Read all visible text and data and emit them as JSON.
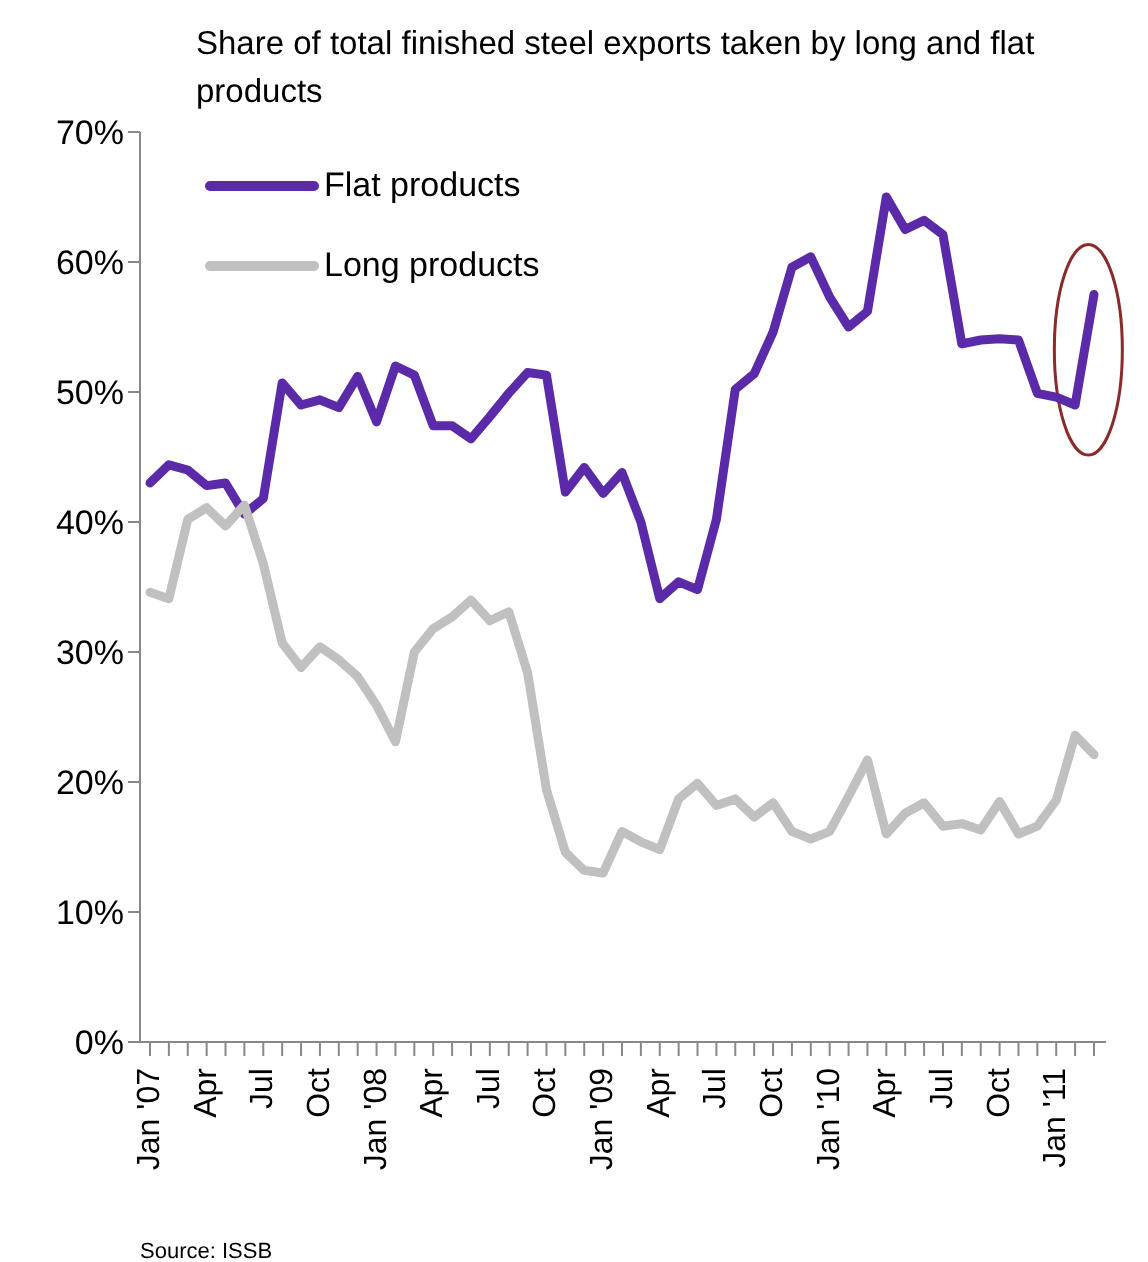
{
  "chart_data": {
    "type": "line",
    "title": "Share of total finished steel exports taken by long and flat products",
    "categories": [
      "Jan '07",
      null,
      null,
      "Apr",
      null,
      null,
      "Jul",
      null,
      null,
      "Oct",
      null,
      null,
      "Jan '08",
      null,
      null,
      "Apr",
      null,
      null,
      "Jul",
      null,
      null,
      "Oct",
      null,
      null,
      "Jan '09",
      null,
      null,
      "Apr",
      null,
      null,
      "Jul",
      null,
      null,
      "Oct",
      null,
      null,
      "Jan '10",
      null,
      null,
      "Apr",
      null,
      null,
      "Jul",
      null,
      null,
      "Oct",
      null,
      null,
      "Jan '11",
      null,
      null
    ],
    "series": [
      {
        "name": "Flat products",
        "color": "#5b2aa8",
        "values": [
          43.0,
          44.4,
          44.0,
          42.8,
          43.0,
          40.6,
          41.8,
          50.7,
          49.0,
          49.4,
          48.8,
          51.2,
          47.7,
          52.0,
          51.3,
          47.4,
          47.4,
          46.4,
          48.1,
          49.9,
          51.5,
          51.3,
          42.3,
          44.2,
          42.2,
          43.8,
          40.0,
          34.1,
          35.4,
          34.8,
          40.2,
          50.2,
          51.4,
          54.6,
          59.6,
          60.4,
          57.3,
          55.0,
          56.2,
          65.0,
          62.5,
          63.2,
          62.1,
          53.7,
          54.0,
          54.1,
          54.0,
          49.9,
          49.6,
          49.0,
          57.5
        ]
      },
      {
        "name": "Long products",
        "color": "#c0c0c0",
        "values": [
          34.6,
          34.1,
          40.2,
          41.1,
          39.7,
          41.3,
          36.8,
          30.7,
          28.8,
          30.4,
          29.4,
          28.1,
          25.9,
          23.1,
          30.0,
          31.8,
          32.7,
          34.0,
          32.4,
          33.1,
          28.4,
          19.4,
          14.6,
          13.2,
          13.0,
          16.2,
          15.4,
          14.8,
          18.7,
          19.9,
          18.2,
          18.7,
          17.3,
          18.4,
          16.2,
          15.6,
          16.2,
          18.9,
          21.7,
          16.0,
          17.6,
          18.4,
          16.6,
          16.8,
          16.3,
          18.5,
          16.0,
          16.6,
          18.6,
          23.6,
          22.1
        ]
      }
    ],
    "ylim": [
      0,
      70
    ],
    "yticks": [
      {
        "value": 0,
        "label": "0%"
      },
      {
        "value": 10,
        "label": "10%"
      },
      {
        "value": 20,
        "label": "20%"
      },
      {
        "value": 30,
        "label": "30%"
      },
      {
        "value": 40,
        "label": "40%"
      },
      {
        "value": 50,
        "label": "50%"
      },
      {
        "value": 60,
        "label": "60%"
      },
      {
        "value": 70,
        "label": "70%"
      }
    ],
    "grid": false,
    "legend": "top left",
    "marker": "none",
    "line_style": "solid",
    "annotations": [
      "Source: ISSB"
    ]
  }
}
